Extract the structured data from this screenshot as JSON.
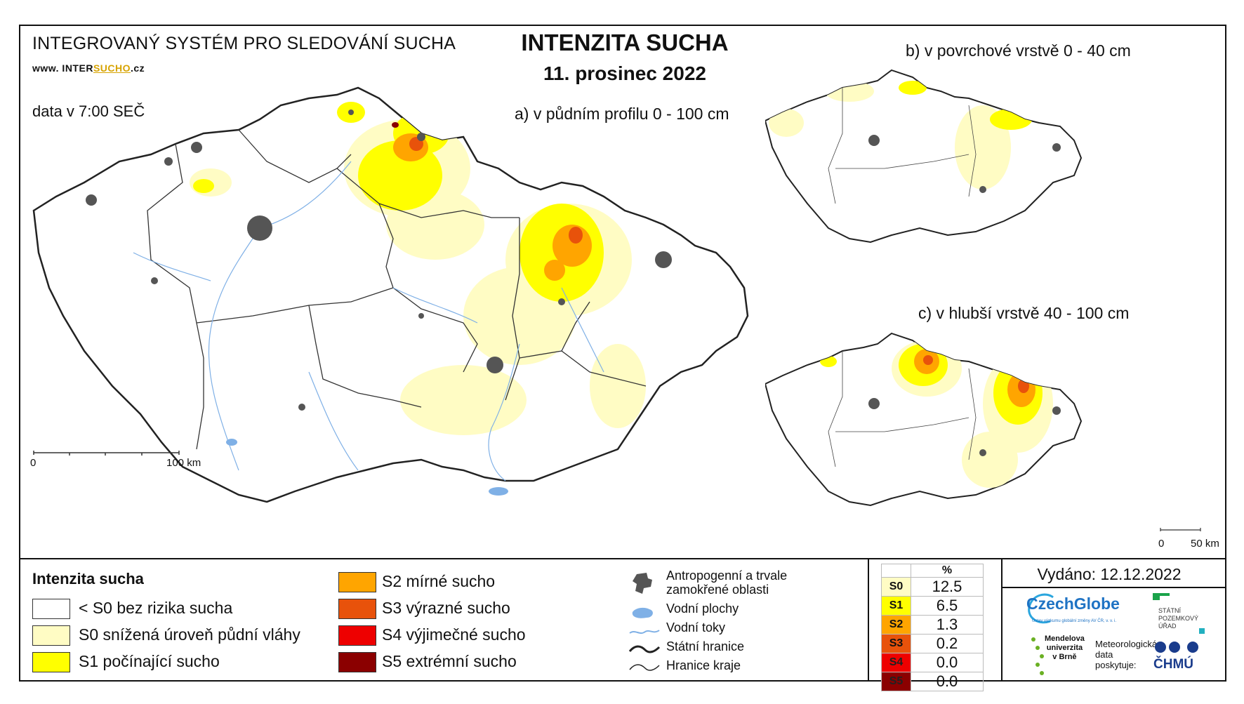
{
  "header": {
    "system": "INTEGROVANÝ SYSTÉM PRO SLEDOVÁNÍ SUCHA",
    "url_prefix": "www. INTER",
    "url_highlight": "SUCHO",
    "url_suffix": ".cz",
    "data_time": "data v 7:00 SEČ",
    "title": "INTENZITA SUCHA",
    "date": "11. prosinec 2022"
  },
  "maps": {
    "main_label": "a) v půdním profilu 0 - 100 cm",
    "surface_label": "b) v povrchové vrstvě 0 - 40 cm",
    "deep_label": "c) v hlubší vrstvě 40 - 100 cm",
    "main_scale": {
      "zero": "0",
      "end": "100 km"
    },
    "small_scale": {
      "zero": "0",
      "end": "50 km"
    }
  },
  "legend": {
    "title": "Intenzita sucha",
    "classes": [
      {
        "label": "< S0 bez rizika sucha",
        "color": "#ffffff"
      },
      {
        "label": "S0 snížená úroveň půdní vláhy",
        "color": "#fffcc4"
      },
      {
        "label": "S1 počínající sucho",
        "color": "#ffff00"
      },
      {
        "label": "S2 mírné sucho",
        "color": "#ffa500"
      },
      {
        "label": "S3 výrazné sucho",
        "color": "#e8520b"
      },
      {
        "label": "S4 výjimečné sucho",
        "color": "#ee0000"
      },
      {
        "label": "S5 extrémní sucho",
        "color": "#8b0000"
      }
    ],
    "symbols": [
      {
        "label_line1": "Antropogenní a trvale",
        "label_line2": "zamokřené oblasti",
        "icon": "urban-area-icon"
      },
      {
        "label": "Vodní plochy",
        "icon": "water-body-icon"
      },
      {
        "label": "Vodní toky",
        "icon": "river-icon"
      },
      {
        "label": "Státní hranice",
        "icon": "state-border-icon"
      },
      {
        "label": "Hranice kraje",
        "icon": "region-border-icon"
      }
    ]
  },
  "stats": {
    "header": "%",
    "rows": [
      {
        "class": "S0",
        "value": "12.5",
        "color": "#fffcc4"
      },
      {
        "class": "S1",
        "value": "6.5",
        "color": "#ffff00"
      },
      {
        "class": "S2",
        "value": "1.3",
        "color": "#ffa500"
      },
      {
        "class": "S3",
        "value": "0.2",
        "color": "#e8520b"
      },
      {
        "class": "S4",
        "value": "0.0",
        "color": "#ee0000"
      },
      {
        "class": "S5",
        "value": "0.0",
        "color": "#8b0000"
      }
    ]
  },
  "issued": "Vydáno: 12.12.2022",
  "logos": {
    "czechglobe": "CzechGlobe",
    "czechglobe_sub": "Ústav výzkumu globální změny AV ČR, v. v. i.",
    "spu_line1": "STÁTNÍ",
    "spu_line2": "POZEMKOVÝ",
    "spu_line3": "ÚŘAD",
    "mendel_line1": "Mendelova",
    "mendel_line2": "univerzita",
    "mendel_line3": "v Brně",
    "met_line1": "Meteorologická",
    "met_line2": "data",
    "met_line3": "poskytuje:",
    "chmu": "ČHMÚ"
  }
}
